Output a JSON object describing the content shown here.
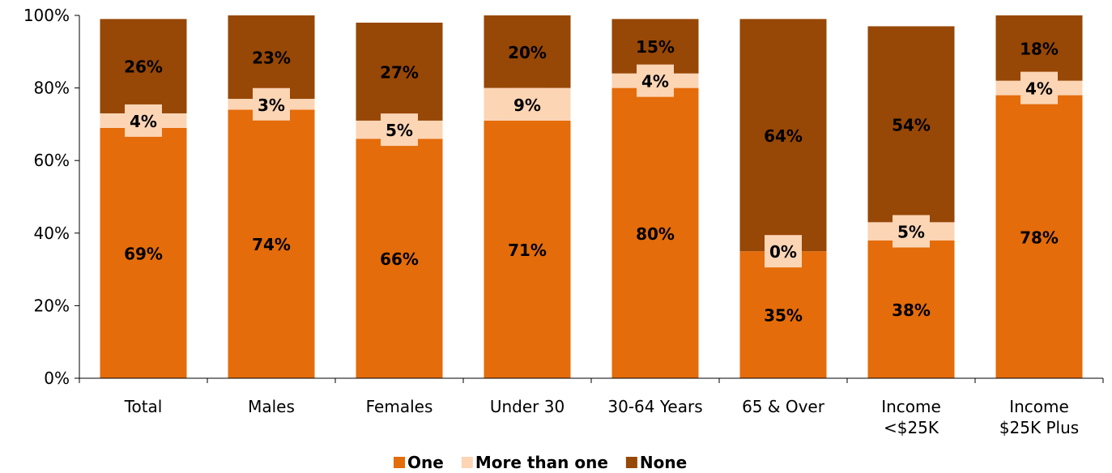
{
  "chart_data": {
    "type": "bar",
    "stacked": true,
    "categories": [
      [
        "Total"
      ],
      [
        "Males"
      ],
      [
        "Females"
      ],
      [
        "Under 30"
      ],
      [
        "30-64 Years"
      ],
      [
        "65 & Over"
      ],
      [
        "Income",
        "<$25K"
      ],
      [
        "Income",
        "$25K Plus"
      ]
    ],
    "series": [
      {
        "name": "One",
        "color": "#e46c0a",
        "values": [
          69,
          74,
          66,
          71,
          80,
          35,
          38,
          78
        ],
        "labels": [
          "69%",
          "74%",
          "66%",
          "71%",
          "80%",
          "35%",
          "38%",
          "78%"
        ]
      },
      {
        "name": "More than one",
        "color": "#fcd5b5",
        "values": [
          4,
          3,
          5,
          9,
          4,
          0,
          5,
          4
        ],
        "labels": [
          "4%",
          "3%",
          "5%",
          "9%",
          "4%",
          "0%",
          "5%",
          "4%"
        ]
      },
      {
        "name": "None",
        "color": "#974706",
        "values": [
          26,
          23,
          27,
          20,
          15,
          64,
          54,
          18
        ],
        "labels": [
          "26%",
          "23%",
          "27%",
          "20%",
          "15%",
          "64%",
          "54%",
          "18%"
        ]
      }
    ],
    "ylim": [
      0,
      100
    ],
    "yticks": [
      0,
      20,
      40,
      60,
      80,
      100
    ],
    "ytick_labels": [
      "0%",
      "20%",
      "40%",
      "60%",
      "80%",
      "100%"
    ],
    "grid": false,
    "legend_position": "bottom-center"
  }
}
